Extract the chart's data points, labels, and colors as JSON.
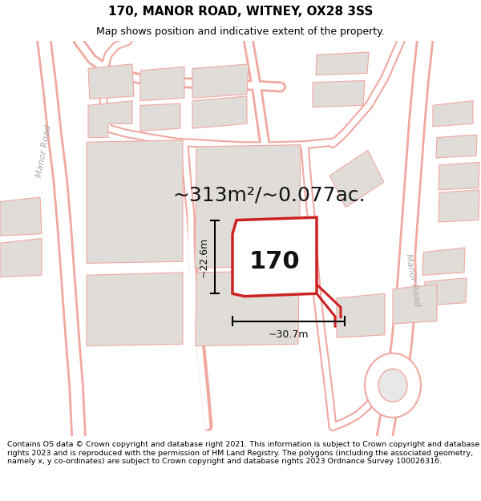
{
  "title": "170, MANOR ROAD, WITNEY, OX28 3SS",
  "subtitle": "Map shows position and indicative extent of the property.",
  "area_text": "~313m²/~0.077ac.",
  "property_number": "170",
  "dim_width": "~30.7m",
  "dim_height": "~22.6m",
  "footer": "Contains OS data © Crown copyright and database right 2021. This information is subject to Crown copyright and database rights 2023 and is reproduced with the permission of HM Land Registry. The polygons (including the associated geometry, namely x, y co-ordinates) are subject to Crown copyright and database rights 2023 Ordnance Survey 100026316.",
  "bg_color": "#ffffff",
  "map_bg": "#ffffff",
  "building_color": "#e0ddd8",
  "road_line_color": "#f0a8a0",
  "highlight_color": "#cc2222",
  "title_color": "#000000",
  "footer_color": "#000000",
  "road_label_color": "#aaaaaa",
  "title_fontsize": 11,
  "subtitle_fontsize": 9,
  "area_fontsize": 18,
  "number_fontsize": 22,
  "dim_fontsize": 9,
  "footer_fontsize": 6.8
}
